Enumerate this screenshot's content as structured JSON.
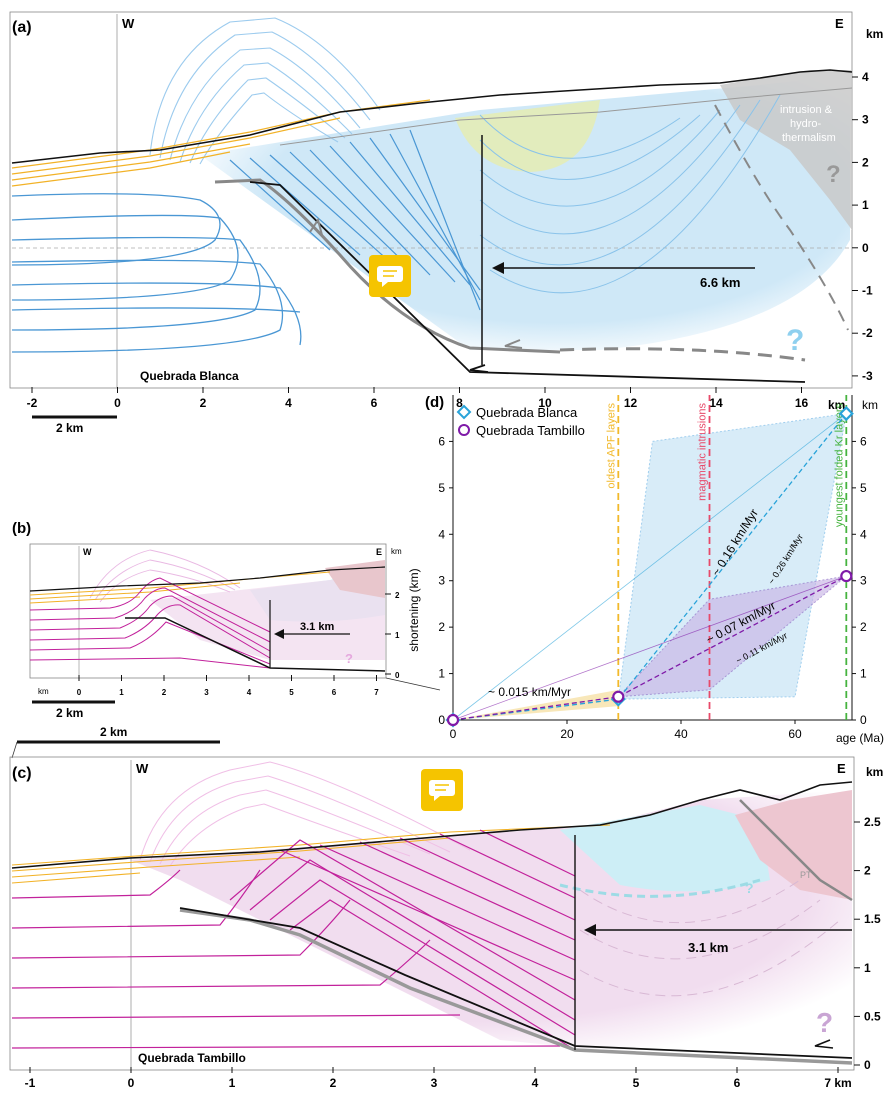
{
  "panel_a": {
    "letter": "(a)",
    "west": "W",
    "east": "E",
    "unit": "km",
    "right_ticks": [
      "4",
      "3",
      "2",
      "1",
      "0",
      "-1",
      "-2",
      "-3"
    ],
    "bottom_ticks": [
      "-2",
      "0",
      "2",
      "4",
      "6",
      "8",
      "10",
      "12",
      "14",
      "16"
    ],
    "bottom_unit": "km",
    "scale_bar": "2 km",
    "site": "Quebrada Blanca",
    "shortening": "6.6 km",
    "intrusion_label_lines": [
      "intrusion &",
      "hydro-",
      "thermalism"
    ],
    "question_mark": "?"
  },
  "panel_b": {
    "letter": "(b)",
    "west": "W",
    "east": "E",
    "unit": "km",
    "right_ticks": [
      "2",
      "1",
      "0"
    ],
    "bottom_ticks": [
      "0",
      "1",
      "2",
      "3",
      "4",
      "5",
      "6",
      "7"
    ],
    "bottom_unit": "km",
    "shortening": "3.1 km",
    "scale_bar_small": "2 km",
    "scale_bar_large": "2 km",
    "question_mark": "?"
  },
  "panel_c": {
    "letter": "(c)",
    "west": "W",
    "east": "E",
    "unit": "km",
    "right_ticks": [
      "2.5",
      "2",
      "1.5",
      "1",
      "0.5",
      "0"
    ],
    "bottom_ticks": [
      "-1",
      "0",
      "1",
      "2",
      "3",
      "4",
      "5",
      "6",
      "7 km"
    ],
    "site": "Quebrada Tambillo",
    "shortening": "3.1 km",
    "question_mark": "?",
    "small_question": "?",
    "pt_label": "PT"
  },
  "chart_data": {
    "type": "scatter",
    "letter": "(d)",
    "xlabel": "age (Ma)",
    "ylabel": "shortening (km)",
    "y_unit": "km",
    "xlim": [
      0,
      70
    ],
    "ylim": [
      0,
      7
    ],
    "x_ticks": [
      0,
      20,
      40,
      60
    ],
    "y_ticks": [
      0,
      1,
      2,
      3,
      4,
      5,
      6
    ],
    "legend_position": "top-left",
    "series": [
      {
        "name": "Quebrada Blanca",
        "color": "#29a3d9",
        "marker": "diamond",
        "x": [
          0,
          29,
          69
        ],
        "y": [
          0,
          0.45,
          6.6
        ]
      },
      {
        "name": "Quebrada Tambillo",
        "color": "#7f1aa8",
        "marker": "circle",
        "x": [
          0,
          29,
          69
        ],
        "y": [
          0,
          0.5,
          3.1
        ]
      }
    ],
    "vertical_lines": [
      {
        "x": 29,
        "label": "oldest  APF  layers",
        "color": "#f2b92b"
      },
      {
        "x": 45,
        "label": "magmatic  intrusions",
        "color": "#e84a6a"
      },
      {
        "x": 69,
        "label": "youngest folded Kr layers",
        "color": "#46b33f"
      }
    ],
    "rate_labels": [
      "~ 0.015 km/Myr",
      "~ 0.16 km/Myr",
      "~ 0.26 km/Myr",
      "~ 0.07 km/Myr",
      "~ 0.11 km/Myr"
    ]
  },
  "colors": {
    "blue_strata": "#4a97d4",
    "blue_fill": "#cfe8f7",
    "magenta_strata": "#c2219b",
    "pink_fill": "#f1ddef",
    "orange_strata": "#f2b227",
    "green_fill": "#e3ecb6",
    "fault": "#111111",
    "comment_icon": "#f5c400"
  },
  "icons": [
    "comment-icon",
    "comment-icon"
  ]
}
